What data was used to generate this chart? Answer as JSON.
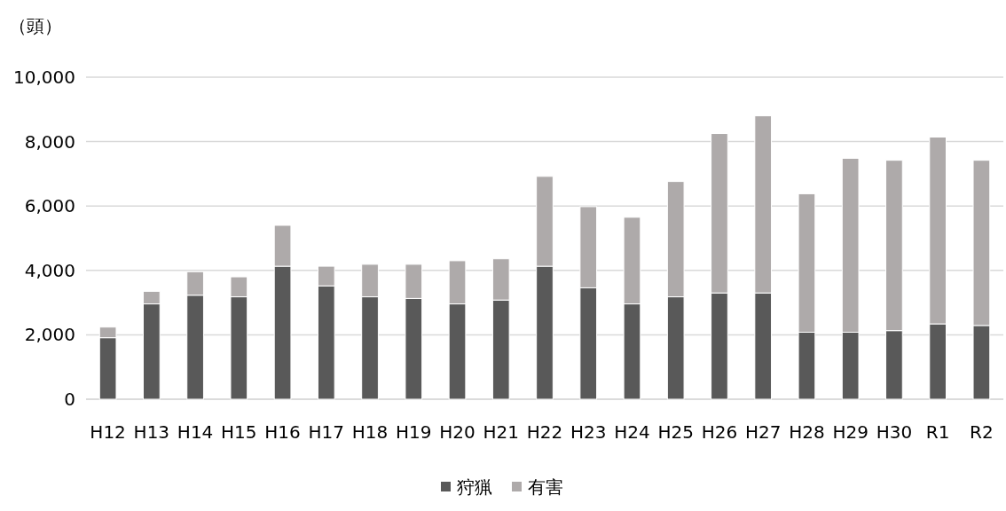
{
  "chart_data": {
    "type": "bar",
    "stacked": true,
    "ylabel": "（頭）",
    "categories": [
      "H12",
      "H13",
      "H14",
      "H15",
      "H16",
      "H17",
      "H18",
      "H19",
      "H20",
      "H21",
      "H22",
      "H23",
      "H24",
      "H25",
      "H26",
      "H27",
      "H28",
      "H29",
      "H30",
      "R1",
      "R2"
    ],
    "series": [
      {
        "name": "狩猟",
        "color": "#595959",
        "values": [
          1910,
          2960,
          3230,
          3180,
          4130,
          3520,
          3180,
          3130,
          2960,
          3080,
          4130,
          3460,
          2960,
          3180,
          3300,
          3300,
          2080,
          2080,
          2130,
          2340,
          2290
        ]
      },
      {
        "name": "有害",
        "color": "#aeaaaa",
        "values": [
          330,
          390,
          730,
          620,
          1270,
          610,
          1010,
          1060,
          1340,
          1280,
          2790,
          2520,
          2690,
          3580,
          4950,
          5500,
          4300,
          5400,
          5290,
          5800,
          5130
        ]
      }
    ],
    "ylim": [
      0,
      10000
    ],
    "yticks": [
      0,
      {
        "value": 2000,
        "label": "2,000"
      },
      {
        "value": 4000,
        "label": "4,000"
      },
      {
        "value": 6000,
        "label": "6,000"
      },
      {
        "value": 8000,
        "label": "8,000"
      },
      {
        "value": 10000,
        "label": "10,000"
      }
    ],
    "grid": "y",
    "legend": "bottom"
  }
}
